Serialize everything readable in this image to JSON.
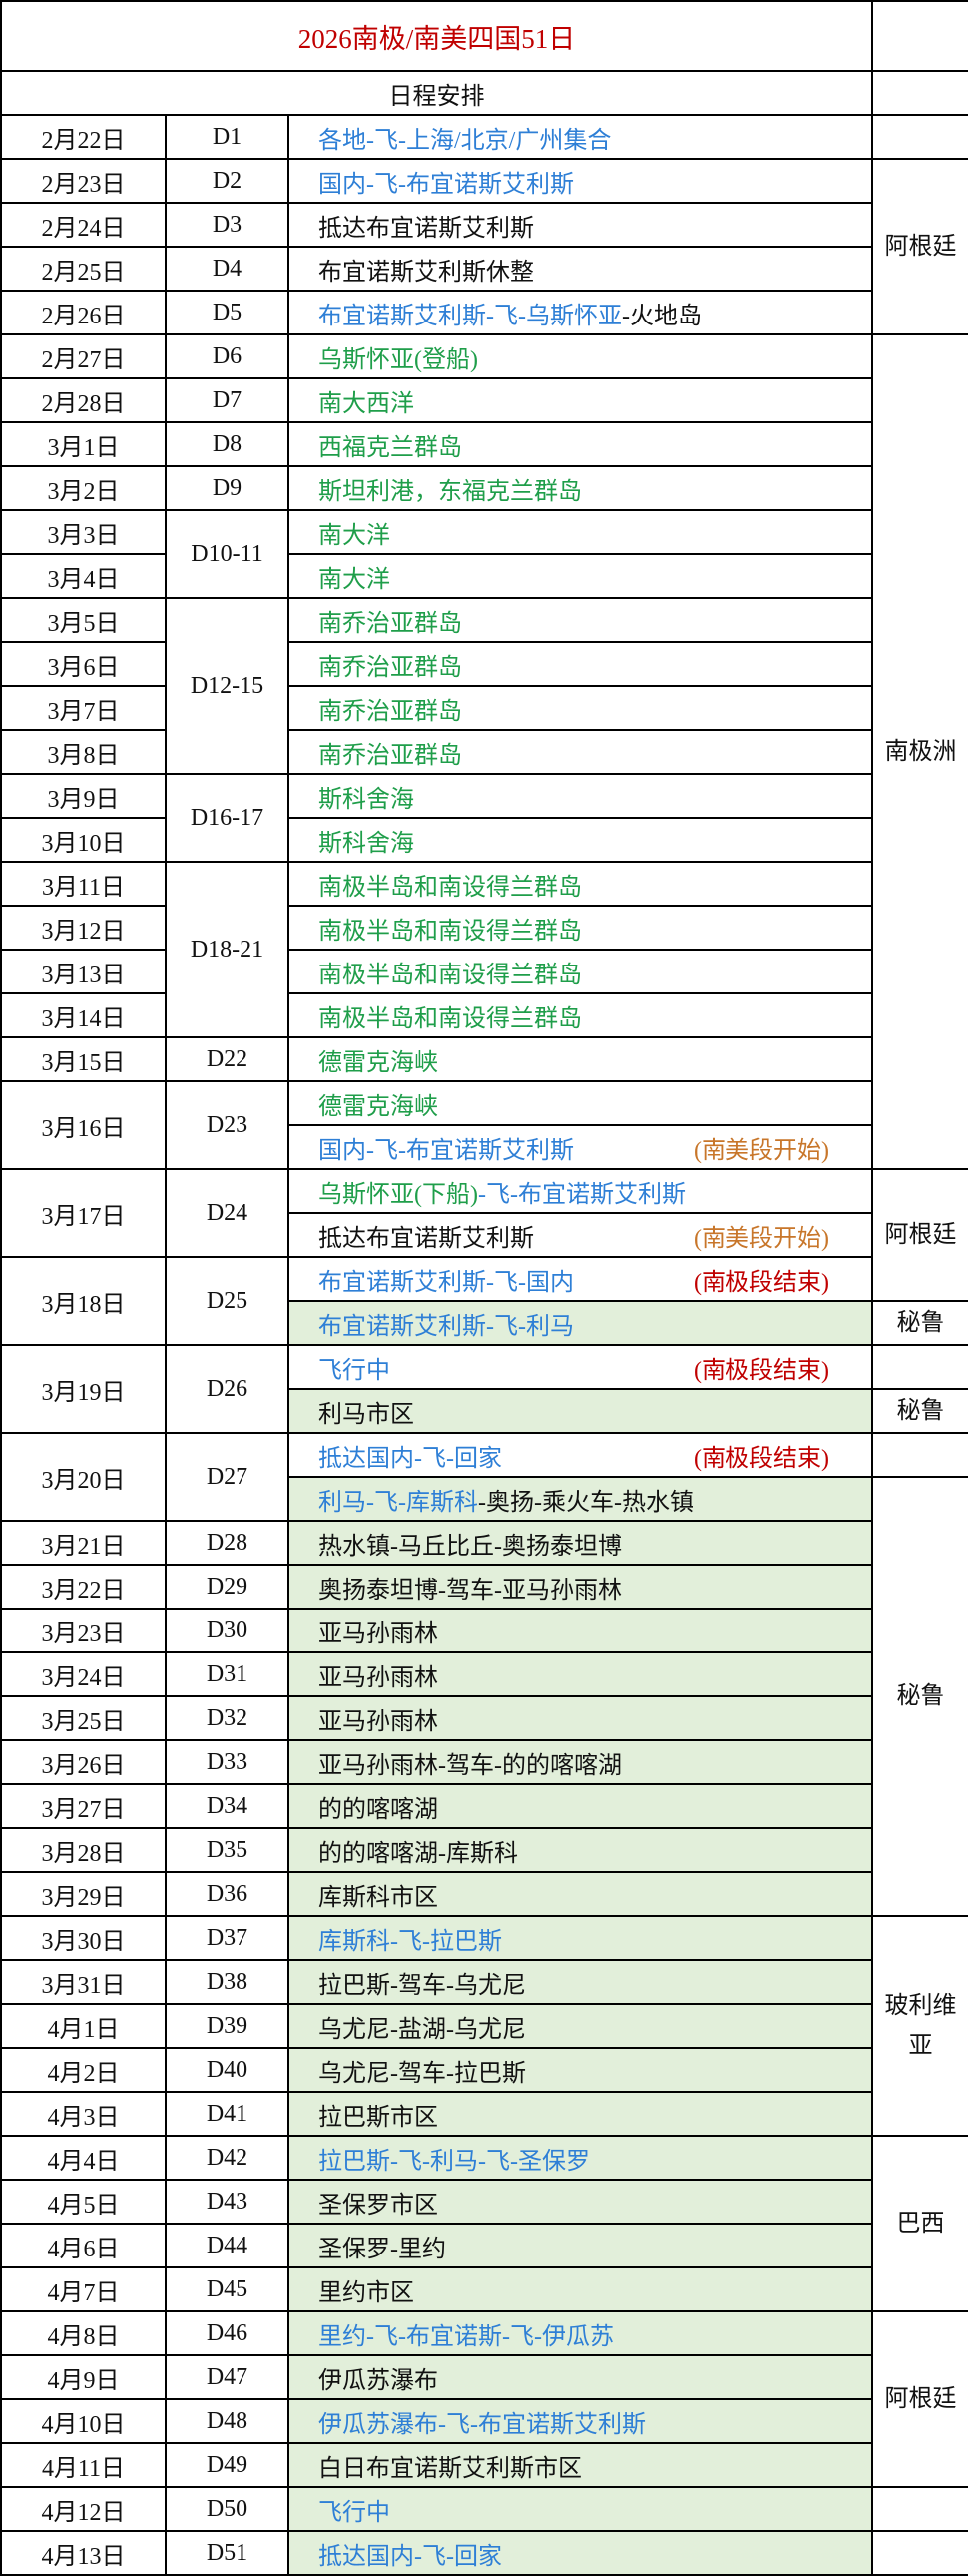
{
  "title": "2026南极/南美四国51日",
  "header": "日程安排",
  "colors": {
    "title": "#c00000",
    "blue": "#2e7fd6",
    "green": "#1f9e4a",
    "black": "#111111",
    "orange": "#c8762a",
    "red": "#c00000",
    "highlight_bg": "#e2efda"
  },
  "dates": [
    {
      "text": "2月22日",
      "span": 1
    },
    {
      "text": "2月23日",
      "span": 1
    },
    {
      "text": "2月24日",
      "span": 1
    },
    {
      "text": "2月25日",
      "span": 1
    },
    {
      "text": "2月26日",
      "span": 1
    },
    {
      "text": "2月27日",
      "span": 1
    },
    {
      "text": "2月28日",
      "span": 1
    },
    {
      "text": "3月1日",
      "span": 1
    },
    {
      "text": "3月2日",
      "span": 1
    },
    {
      "text": "3月3日",
      "span": 1
    },
    {
      "text": "3月4日",
      "span": 1
    },
    {
      "text": "3月5日",
      "span": 1
    },
    {
      "text": "3月6日",
      "span": 1
    },
    {
      "text": "3月7日",
      "span": 1
    },
    {
      "text": "3月8日",
      "span": 1
    },
    {
      "text": "3月9日",
      "span": 1
    },
    {
      "text": "3月10日",
      "span": 1
    },
    {
      "text": "3月11日",
      "span": 1
    },
    {
      "text": "3月12日",
      "span": 1
    },
    {
      "text": "3月13日",
      "span": 1
    },
    {
      "text": "3月14日",
      "span": 1
    },
    {
      "text": "3月15日",
      "span": 1
    },
    {
      "text": "3月16日",
      "span": 2
    },
    {
      "text": "3月17日",
      "span": 2
    },
    {
      "text": "3月18日",
      "span": 2
    },
    {
      "text": "3月19日",
      "span": 2
    },
    {
      "text": "3月20日",
      "span": 2
    },
    {
      "text": "3月21日",
      "span": 1
    },
    {
      "text": "3月22日",
      "span": 1
    },
    {
      "text": "3月23日",
      "span": 1
    },
    {
      "text": "3月24日",
      "span": 1
    },
    {
      "text": "3月25日",
      "span": 1
    },
    {
      "text": "3月26日",
      "span": 1
    },
    {
      "text": "3月27日",
      "span": 1
    },
    {
      "text": "3月28日",
      "span": 1
    },
    {
      "text": "3月29日",
      "span": 1
    },
    {
      "text": "3月30日",
      "span": 1
    },
    {
      "text": "3月31日",
      "span": 1
    },
    {
      "text": "4月1日",
      "span": 1
    },
    {
      "text": "4月2日",
      "span": 1
    },
    {
      "text": "4月3日",
      "span": 1
    },
    {
      "text": "4月4日",
      "span": 1
    },
    {
      "text": "4月5日",
      "span": 1
    },
    {
      "text": "4月6日",
      "span": 1
    },
    {
      "text": "4月7日",
      "span": 1
    },
    {
      "text": "4月8日",
      "span": 1
    },
    {
      "text": "4月9日",
      "span": 1
    },
    {
      "text": "4月10日",
      "span": 1
    },
    {
      "text": "4月11日",
      "span": 1
    },
    {
      "text": "4月12日",
      "span": 1
    },
    {
      "text": "4月13日",
      "span": 1
    }
  ],
  "days": [
    {
      "text": "D1",
      "span": 1
    },
    {
      "text": "D2",
      "span": 1
    },
    {
      "text": "D3",
      "span": 1
    },
    {
      "text": "D4",
      "span": 1
    },
    {
      "text": "D5",
      "span": 1
    },
    {
      "text": "D6",
      "span": 1
    },
    {
      "text": "D7",
      "span": 1
    },
    {
      "text": "D8",
      "span": 1
    },
    {
      "text": "D9",
      "span": 1
    },
    {
      "text": "D10-11",
      "span": 2
    },
    {
      "text": "D12-15",
      "span": 4
    },
    {
      "text": "D16-17",
      "span": 2
    },
    {
      "text": "D18-21",
      "span": 4
    },
    {
      "text": "D22",
      "span": 1
    },
    {
      "text": "D23",
      "span": 2
    },
    {
      "text": "D24",
      "span": 2
    },
    {
      "text": "D25",
      "span": 2
    },
    {
      "text": "D26",
      "span": 2
    },
    {
      "text": "D27",
      "span": 2
    },
    {
      "text": "D28",
      "span": 1
    },
    {
      "text": "D29",
      "span": 1
    },
    {
      "text": "D30",
      "span": 1
    },
    {
      "text": "D31",
      "span": 1
    },
    {
      "text": "D32",
      "span": 1
    },
    {
      "text": "D33",
      "span": 1
    },
    {
      "text": "D34",
      "span": 1
    },
    {
      "text": "D35",
      "span": 1
    },
    {
      "text": "D36",
      "span": 1
    },
    {
      "text": "D37",
      "span": 1
    },
    {
      "text": "D38",
      "span": 1
    },
    {
      "text": "D39",
      "span": 1
    },
    {
      "text": "D40",
      "span": 1
    },
    {
      "text": "D41",
      "span": 1
    },
    {
      "text": "D42",
      "span": 1
    },
    {
      "text": "D43",
      "span": 1
    },
    {
      "text": "D44",
      "span": 1
    },
    {
      "text": "D45",
      "span": 1
    },
    {
      "text": "D46",
      "span": 1
    },
    {
      "text": "D47",
      "span": 1
    },
    {
      "text": "D48",
      "span": 1
    },
    {
      "text": "D49",
      "span": 1
    },
    {
      "text": "D50",
      "span": 1
    },
    {
      "text": "D51",
      "span": 1
    }
  ],
  "items": [
    {
      "parts": [
        {
          "text": "各地-飞-上海/北京/广州集合",
          "color": "blue"
        }
      ]
    },
    {
      "parts": [
        {
          "text": "国内-飞-布宜诺斯艾利斯",
          "color": "blue"
        }
      ]
    },
    {
      "parts": [
        {
          "text": "抵达布宜诺斯艾利斯",
          "color": "black"
        }
      ]
    },
    {
      "parts": [
        {
          "text": "布宜诺斯艾利斯休整",
          "color": "black"
        }
      ]
    },
    {
      "parts": [
        {
          "text": "布宜诺斯艾利斯-飞-乌斯怀亚",
          "color": "blue"
        },
        {
          "text": "-火地岛",
          "color": "black"
        }
      ]
    },
    {
      "parts": [
        {
          "text": "乌斯怀亚(登船)",
          "color": "green"
        }
      ]
    },
    {
      "parts": [
        {
          "text": "南大西洋",
          "color": "green"
        }
      ]
    },
    {
      "parts": [
        {
          "text": "西福克兰群岛",
          "color": "green"
        }
      ]
    },
    {
      "parts": [
        {
          "text": "斯坦利港，东福克兰群岛",
          "color": "green"
        }
      ]
    },
    {
      "parts": [
        {
          "text": "南大洋",
          "color": "green"
        }
      ]
    },
    {
      "parts": [
        {
          "text": "南大洋",
          "color": "green"
        }
      ]
    },
    {
      "parts": [
        {
          "text": "南乔治亚群岛",
          "color": "green"
        }
      ]
    },
    {
      "parts": [
        {
          "text": "南乔治亚群岛",
          "color": "green"
        }
      ]
    },
    {
      "parts": [
        {
          "text": "南乔治亚群岛",
          "color": "green"
        }
      ]
    },
    {
      "parts": [
        {
          "text": "南乔治亚群岛",
          "color": "green"
        }
      ]
    },
    {
      "parts": [
        {
          "text": "斯科舍海",
          "color": "green"
        }
      ]
    },
    {
      "parts": [
        {
          "text": "斯科舍海",
          "color": "green"
        }
      ]
    },
    {
      "parts": [
        {
          "text": "南极半岛和南设得兰群岛",
          "color": "green"
        }
      ]
    },
    {
      "parts": [
        {
          "text": "南极半岛和南设得兰群岛",
          "color": "green"
        }
      ]
    },
    {
      "parts": [
        {
          "text": "南极半岛和南设得兰群岛",
          "color": "green"
        }
      ]
    },
    {
      "parts": [
        {
          "text": "南极半岛和南设得兰群岛",
          "color": "green"
        }
      ]
    },
    {
      "parts": [
        {
          "text": "德雷克海峡",
          "color": "green"
        }
      ]
    },
    {
      "parts": [
        {
          "text": "德雷克海峡",
          "color": "green"
        }
      ]
    },
    {
      "parts": [
        {
          "text": "国内-飞-布宜诺斯艾利斯",
          "color": "blue"
        }
      ],
      "note": {
        "text": "(南美段开始)",
        "color": "orange"
      }
    },
    {
      "parts": [
        {
          "text": "乌斯怀亚(下船)",
          "color": "green"
        },
        {
          "text": "-飞-布宜诺斯艾利斯",
          "color": "blue"
        }
      ]
    },
    {
      "parts": [
        {
          "text": "抵达布宜诺斯艾利斯",
          "color": "black"
        }
      ],
      "note": {
        "text": "(南美段开始)",
        "color": "orange"
      }
    },
    {
      "parts": [
        {
          "text": "布宜诺斯艾利斯-飞-国内",
          "color": "blue"
        }
      ],
      "note": {
        "text": "(南极段结束)",
        "color": "red"
      }
    },
    {
      "parts": [
        {
          "text": "布宜诺斯艾利斯-飞-利马",
          "color": "blue"
        }
      ],
      "highlight": true
    },
    {
      "parts": [
        {
          "text": "飞行中",
          "color": "blue"
        }
      ],
      "note": {
        "text": "(南极段结束)",
        "color": "red"
      }
    },
    {
      "parts": [
        {
          "text": "利马市区",
          "color": "black"
        }
      ],
      "highlight": true
    },
    {
      "parts": [
        {
          "text": "抵达国内-飞-回家",
          "color": "blue"
        }
      ],
      "note": {
        "text": "(南极段结束)",
        "color": "red"
      }
    },
    {
      "parts": [
        {
          "text": "利马-飞-库斯科",
          "color": "blue"
        },
        {
          "text": "-奥扬-乘火车-热水镇",
          "color": "black"
        }
      ],
      "highlight": true
    },
    {
      "parts": [
        {
          "text": "热水镇-马丘比丘-奥扬泰坦博",
          "color": "black"
        }
      ],
      "highlight": true
    },
    {
      "parts": [
        {
          "text": "奥扬泰坦博-驾车-亚马孙雨林",
          "color": "black"
        }
      ],
      "highlight": true
    },
    {
      "parts": [
        {
          "text": "亚马孙雨林",
          "color": "black"
        }
      ],
      "highlight": true
    },
    {
      "parts": [
        {
          "text": "亚马孙雨林",
          "color": "black"
        }
      ],
      "highlight": true
    },
    {
      "parts": [
        {
          "text": "亚马孙雨林",
          "color": "black"
        }
      ],
      "highlight": true
    },
    {
      "parts": [
        {
          "text": "亚马孙雨林-驾车-的的喀喀湖",
          "color": "black"
        }
      ],
      "highlight": true
    },
    {
      "parts": [
        {
          "text": "的的喀喀湖",
          "color": "black"
        }
      ],
      "highlight": true
    },
    {
      "parts": [
        {
          "text": "的的喀喀湖-库斯科",
          "color": "black"
        }
      ],
      "highlight": true
    },
    {
      "parts": [
        {
          "text": "库斯科市区",
          "color": "black"
        }
      ],
      "highlight": true
    },
    {
      "parts": [
        {
          "text": "库斯科-飞-拉巴斯",
          "color": "blue"
        }
      ],
      "highlight": true
    },
    {
      "parts": [
        {
          "text": "拉巴斯-驾车-乌尤尼",
          "color": "black"
        }
      ],
      "highlight": true
    },
    {
      "parts": [
        {
          "text": "乌尤尼-盐湖-乌尤尼",
          "color": "black"
        }
      ],
      "highlight": true
    },
    {
      "parts": [
        {
          "text": "乌尤尼-驾车-拉巴斯",
          "color": "black"
        }
      ],
      "highlight": true
    },
    {
      "parts": [
        {
          "text": "拉巴斯市区",
          "color": "black"
        }
      ],
      "highlight": true
    },
    {
      "parts": [
        {
          "text": "拉巴斯-飞-利马-飞-圣保罗",
          "color": "blue"
        }
      ],
      "highlight": true
    },
    {
      "parts": [
        {
          "text": "圣保罗市区",
          "color": "black"
        }
      ],
      "highlight": true
    },
    {
      "parts": [
        {
          "text": "圣保罗-里约",
          "color": "black"
        }
      ],
      "highlight": true
    },
    {
      "parts": [
        {
          "text": "里约市区",
          "color": "black"
        }
      ],
      "highlight": true
    },
    {
      "parts": [
        {
          "text": "里约-飞-布宜诺斯-飞-伊瓜苏",
          "color": "blue"
        }
      ],
      "highlight": true
    },
    {
      "parts": [
        {
          "text": "伊瓜苏瀑布",
          "color": "black"
        }
      ],
      "highlight": true
    },
    {
      "parts": [
        {
          "text": "伊瓜苏瀑布-飞-布宜诺斯艾利斯",
          "color": "blue"
        }
      ],
      "highlight": true
    },
    {
      "parts": [
        {
          "text": "白日布宜诺斯艾利斯市区",
          "color": "black"
        }
      ],
      "highlight": true
    },
    {
      "parts": [
        {
          "text": "飞行中",
          "color": "blue"
        }
      ],
      "highlight": true
    },
    {
      "parts": [
        {
          "text": "抵达国内-飞-回家",
          "color": "blue"
        }
      ],
      "highlight": true
    }
  ],
  "countries": [
    {
      "text": "",
      "span": 1
    },
    {
      "text": "阿根廷",
      "span": 4
    },
    {
      "text": "南极洲",
      "span": 19
    },
    {
      "text": "阿根廷",
      "span": 3
    },
    {
      "text": "秘鲁",
      "span": 1
    },
    {
      "text": "",
      "span": 1
    },
    {
      "text": "秘鲁",
      "span": 1
    },
    {
      "text": "",
      "span": 1
    },
    {
      "text": "秘鲁",
      "span": 10
    },
    {
      "text": "玻利维亚",
      "span": 5
    },
    {
      "text": "巴西",
      "span": 4
    },
    {
      "text": "阿根廷",
      "span": 4
    },
    {
      "text": "",
      "span": 1
    },
    {
      "text": "",
      "span": 1
    }
  ]
}
